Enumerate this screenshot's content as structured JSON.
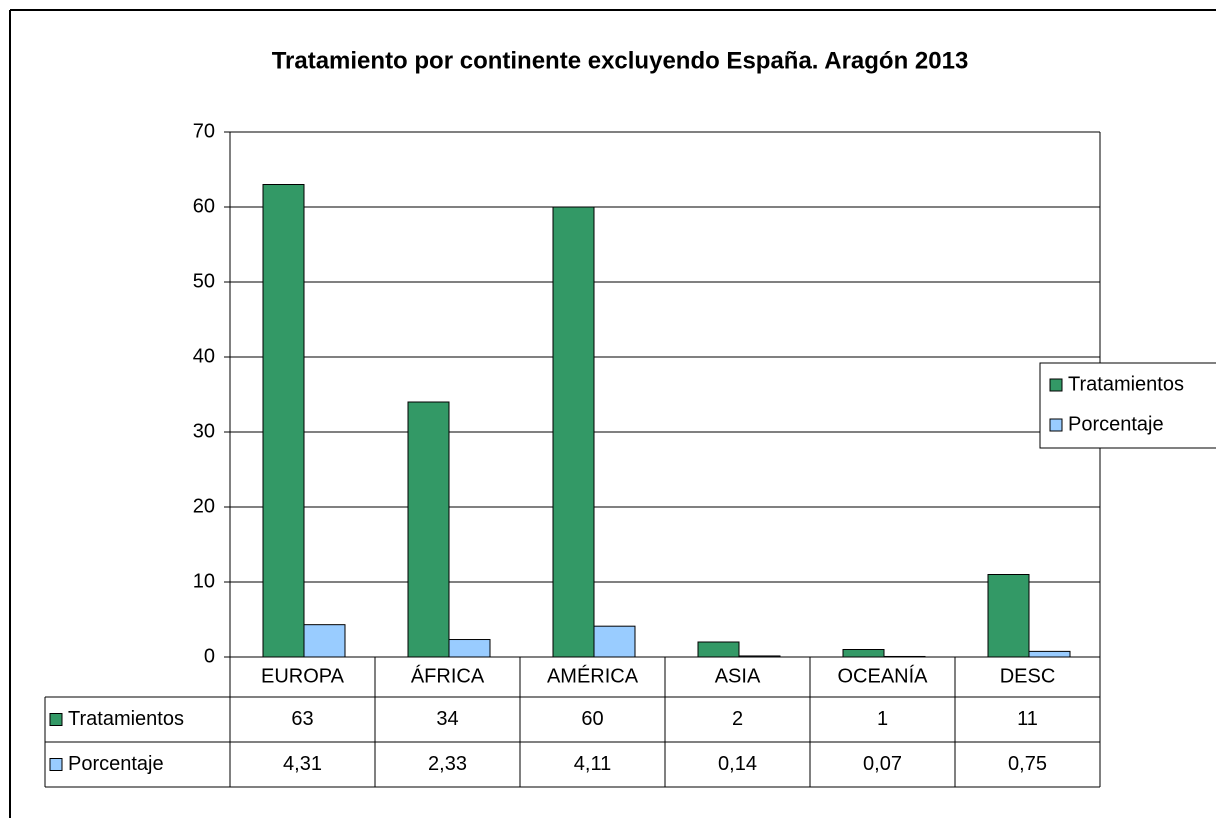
{
  "chart_data": {
    "type": "bar",
    "title": "Tratamiento por continente excluyendo España. Aragón 2013",
    "categories": [
      "EUROPA",
      "ÁFRICA",
      "AMÉRICA",
      "ASIA",
      "OCEANÍA",
      "DESC"
    ],
    "series": [
      {
        "name": "Tratamientos",
        "color": "#339966",
        "values": [
          63,
          34,
          60,
          2,
          1,
          11
        ]
      },
      {
        "name": "Porcentaje",
        "color": "#99ccff",
        "values": [
          4.31,
          2.33,
          4.11,
          0.14,
          0.07,
          0.75
        ],
        "value_labels": [
          "4,31",
          "2,33",
          "4,11",
          "0,14",
          "0,07",
          "0,75"
        ]
      }
    ],
    "ylim": [
      0,
      70
    ],
    "yticks": [
      0,
      10,
      20,
      30,
      40,
      50,
      60,
      70
    ],
    "grid": true,
    "legend": "right"
  }
}
